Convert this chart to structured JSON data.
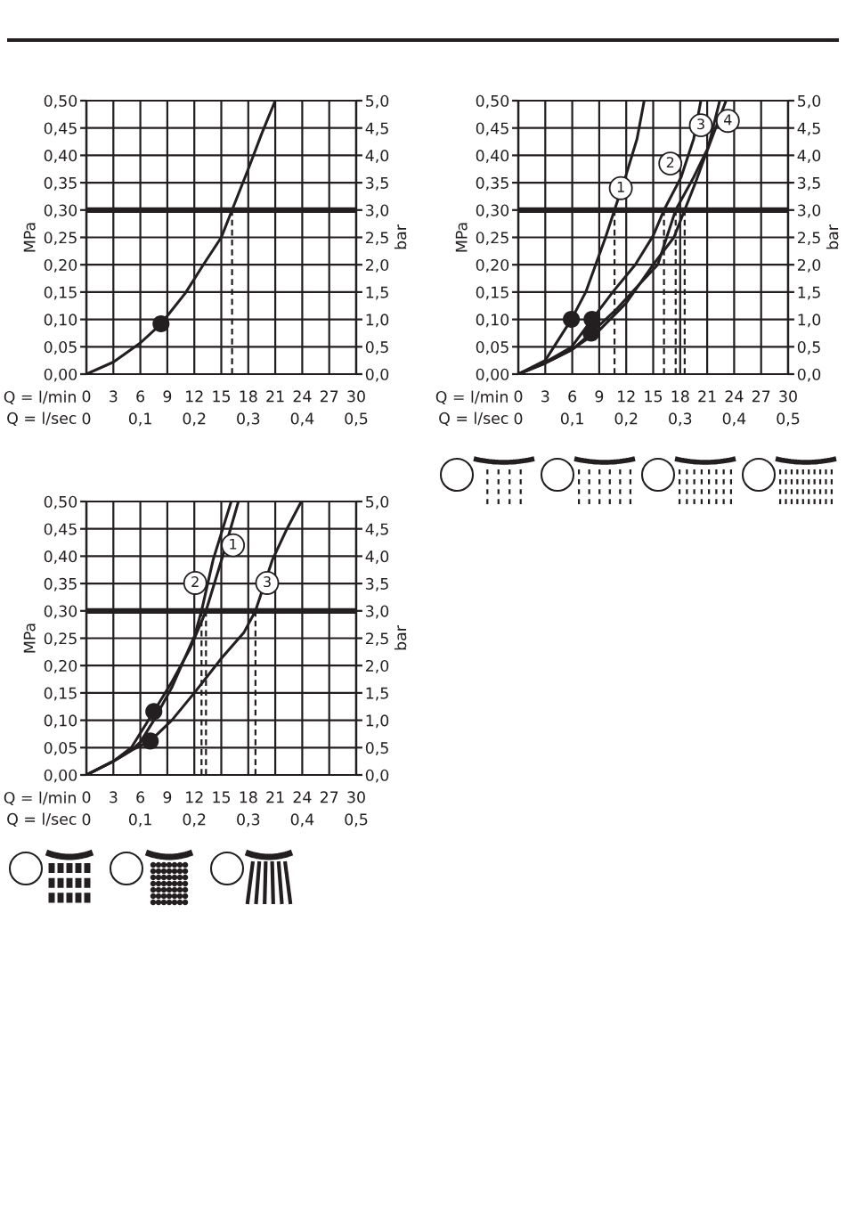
{
  "chart_data": [
    {
      "type": "line",
      "xlabel": "Q = l/min",
      "x2label": "Q = l/sec",
      "ylabel": "MPa",
      "y2label": "bar",
      "xlim": [
        0,
        30
      ],
      "xticks": [
        0,
        3,
        6,
        9,
        12,
        15,
        18,
        21,
        24,
        27,
        30
      ],
      "x2lim": [
        0,
        0.5
      ],
      "x2ticks": [
        0,
        {
          "value": 0.1,
          "label": "0,1"
        },
        {
          "value": 0.2,
          "label": "0,2"
        },
        {
          "value": 0.3,
          "label": "0,3"
        },
        {
          "value": 0.4,
          "label": "0,4"
        },
        {
          "value": 0.5,
          "label": "0,5"
        }
      ],
      "ylim": [
        0,
        0.5
      ],
      "yticks": [
        {
          "value": 0,
          "label": "0,00"
        },
        {
          "value": 0.05,
          "label": "0,05"
        },
        {
          "value": 0.1,
          "label": "0,10"
        },
        {
          "value": 0.15,
          "label": "0,15"
        },
        {
          "value": 0.2,
          "label": "0,20"
        },
        {
          "value": 0.25,
          "label": "0,25"
        },
        {
          "value": 0.3,
          "label": "0,30"
        },
        {
          "value": 0.35,
          "label": "0,35"
        },
        {
          "value": 0.4,
          "label": "0,40"
        },
        {
          "value": 0.45,
          "label": "0,45"
        },
        {
          "value": 0.5,
          "label": "0,50"
        }
      ],
      "y2lim": [
        0,
        5
      ],
      "y2ticks": [
        {
          "value": 0,
          "label": "0,0"
        },
        {
          "value": 0.5,
          "label": "0,5"
        },
        {
          "value": 1,
          "label": "1,0"
        },
        {
          "value": 1.5,
          "label": "1,5"
        },
        {
          "value": 2,
          "label": "2,0"
        },
        {
          "value": 2.5,
          "label": "2,5"
        },
        {
          "value": 3,
          "label": "3,0"
        },
        {
          "value": 3.5,
          "label": "3,5"
        },
        {
          "value": 4,
          "label": "4,0"
        },
        {
          "value": 4.5,
          "label": "4,5"
        },
        {
          "value": 5,
          "label": "5,0"
        }
      ],
      "grid": true,
      "ref_lines": [
        {
          "axis": "y",
          "value": 0.3,
          "color": "#231f20",
          "line_style": "solid"
        },
        {
          "axis": "x",
          "value": 16.2,
          "color": "#231f20",
          "line_style": "dashed"
        }
      ],
      "series": [
        {
          "color": "#231f20",
          "x": [
            0,
            3,
            6,
            8.3,
            11,
            13,
            15,
            16.2,
            18,
            19.5,
            21
          ],
          "values": [
            0,
            0.022,
            0.057,
            0.092,
            0.148,
            0.2,
            0.25,
            0.3,
            0.375,
            0.44,
            0.5
          ]
        },
        {
          "type": "scatter",
          "color": "#231f20",
          "marker": "circle",
          "x": [
            8.3
          ],
          "values": [
            0.092
          ]
        }
      ]
    },
    {
      "type": "line",
      "xlabel": "Q = l/min",
      "x2label": "Q = l/sec",
      "ylabel": "MPa",
      "y2label": "bar",
      "xlim": [
        0,
        30
      ],
      "xticks": [
        0,
        3,
        6,
        9,
        12,
        15,
        18,
        21,
        24,
        27,
        30
      ],
      "x2lim": [
        0,
        0.5
      ],
      "x2ticks": [
        0,
        {
          "value": 0.1,
          "label": "0,1"
        },
        {
          "value": 0.2,
          "label": "0,2"
        },
        {
          "value": 0.3,
          "label": "0,3"
        },
        {
          "value": 0.4,
          "label": "0,4"
        },
        {
          "value": 0.5,
          "label": "0,5"
        }
      ],
      "ylim": [
        0,
        0.5
      ],
      "yticks": [
        {
          "value": 0,
          "label": "0,00"
        },
        {
          "value": 0.05,
          "label": "0,05"
        },
        {
          "value": 0.1,
          "label": "0,10"
        },
        {
          "value": 0.15,
          "label": "0,15"
        },
        {
          "value": 0.2,
          "label": "0,20"
        },
        {
          "value": 0.25,
          "label": "0,25"
        },
        {
          "value": 0.3,
          "label": "0,30"
        },
        {
          "value": 0.35,
          "label": "0,35"
        },
        {
          "value": 0.4,
          "label": "0,40"
        },
        {
          "value": 0.45,
          "label": "0,45"
        },
        {
          "value": 0.5,
          "label": "0,50"
        }
      ],
      "y2lim": [
        0,
        5
      ],
      "y2ticks": [
        {
          "value": 0,
          "label": "0,0"
        },
        {
          "value": 0.5,
          "label": "0,5"
        },
        {
          "value": 1,
          "label": "1,0"
        },
        {
          "value": 1.5,
          "label": "1,5"
        },
        {
          "value": 2,
          "label": "2,0"
        },
        {
          "value": 2.5,
          "label": "2,5"
        },
        {
          "value": 3,
          "label": "3,0"
        },
        {
          "value": 3.5,
          "label": "3,5"
        },
        {
          "value": 4,
          "label": "4,0"
        },
        {
          "value": 4.5,
          "label": "4,5"
        },
        {
          "value": 5,
          "label": "5,0"
        }
      ],
      "grid": true,
      "ref_lines": [
        {
          "axis": "y",
          "value": 0.3,
          "color": "#231f20",
          "line_style": "solid"
        },
        {
          "axis": "x",
          "value": 10.7,
          "color": "#231f20",
          "line_style": "dashed"
        },
        {
          "axis": "x",
          "value": 16.2,
          "color": "#231f20",
          "line_style": "dashed"
        },
        {
          "axis": "x",
          "value": 17.5,
          "color": "#231f20",
          "line_style": "dashed"
        },
        {
          "axis": "x",
          "value": 18.5,
          "color": "#231f20",
          "line_style": "dashed"
        }
      ],
      "annotations": [
        {
          "text": "1",
          "x": 11.4,
          "y": 0.34
        },
        {
          "text": "2",
          "x": 16.9,
          "y": 0.385
        },
        {
          "text": "3",
          "x": 20.3,
          "y": 0.455
        },
        {
          "text": "4",
          "x": 23.3,
          "y": 0.463
        }
      ],
      "series": [
        {
          "color": "#231f20",
          "x": [
            0,
            3,
            5.9,
            7.5,
            8.6,
            9.7,
            10.7,
            12.0,
            13.2,
            14.0
          ],
          "values": [
            0,
            0.025,
            0.1,
            0.15,
            0.2,
            0.25,
            0.3,
            0.365,
            0.43,
            0.5
          ]
        },
        {
          "color": "#231f20",
          "x": [
            0,
            3,
            5.9,
            8.2,
            10.5,
            13,
            15,
            16.2,
            18.1,
            19.5,
            20.3
          ],
          "values": [
            0,
            0.022,
            0.049,
            0.1,
            0.15,
            0.2,
            0.253,
            0.3,
            0.36,
            0.43,
            0.5
          ]
        },
        {
          "color": "#231f20",
          "x": [
            0,
            3,
            6,
            8.1,
            11,
            13.5,
            15.5,
            16.5,
            17.5,
            19.5,
            21.1,
            22.4
          ],
          "values": [
            0,
            0.02,
            0.045,
            0.075,
            0.12,
            0.165,
            0.2,
            0.25,
            0.3,
            0.36,
            0.414,
            0.5
          ]
        },
        {
          "color": "#231f20",
          "x": [
            0,
            3,
            6,
            9,
            12,
            15,
            17.3,
            18.5,
            19.7,
            20.8,
            23.1
          ],
          "values": [
            0,
            0.02,
            0.045,
            0.08,
            0.13,
            0.2,
            0.25,
            0.3,
            0.35,
            0.4,
            0.5
          ]
        },
        {
          "type": "scatter",
          "color": "#231f20",
          "marker": "circle",
          "x": [
            5.9,
            8.2,
            8.1
          ],
          "values": [
            0.1,
            0.1,
            0.075
          ]
        }
      ]
    },
    {
      "type": "line",
      "xlabel": "Q = l/min",
      "x2label": "Q = l/sec",
      "ylabel": "MPa",
      "y2label": "bar",
      "xlim": [
        0,
        30
      ],
      "xticks": [
        0,
        3,
        6,
        9,
        12,
        15,
        18,
        21,
        24,
        27,
        30
      ],
      "x2lim": [
        0,
        0.5
      ],
      "x2ticks": [
        0,
        {
          "value": 0.1,
          "label": "0,1"
        },
        {
          "value": 0.2,
          "label": "0,2"
        },
        {
          "value": 0.3,
          "label": "0,3"
        },
        {
          "value": 0.4,
          "label": "0,4"
        },
        {
          "value": 0.5,
          "label": "0,5"
        }
      ],
      "ylim": [
        0,
        0.5
      ],
      "yticks": [
        {
          "value": 0,
          "label": "0,00"
        },
        {
          "value": 0.05,
          "label": "0,05"
        },
        {
          "value": 0.1,
          "label": "0,10"
        },
        {
          "value": 0.15,
          "label": "0,15"
        },
        {
          "value": 0.2,
          "label": "0,20"
        },
        {
          "value": 0.25,
          "label": "0,25"
        },
        {
          "value": 0.3,
          "label": "0,30"
        },
        {
          "value": 0.35,
          "label": "0,35"
        },
        {
          "value": 0.4,
          "label": "0,40"
        },
        {
          "value": 0.45,
          "label": "0,45"
        },
        {
          "value": 0.5,
          "label": "0,50"
        }
      ],
      "y2lim": [
        0,
        5
      ],
      "y2ticks": [
        {
          "value": 0,
          "label": "0,0"
        },
        {
          "value": 0.5,
          "label": "0,5"
        },
        {
          "value": 1,
          "label": "1,0"
        },
        {
          "value": 1.5,
          "label": "1,5"
        },
        {
          "value": 2,
          "label": "2,0"
        },
        {
          "value": 2.5,
          "label": "2,5"
        },
        {
          "value": 3,
          "label": "3,0"
        },
        {
          "value": 3.5,
          "label": "3,5"
        },
        {
          "value": 4,
          "label": "4,0"
        },
        {
          "value": 4.5,
          "label": "4,5"
        },
        {
          "value": 5,
          "label": "5,0"
        }
      ],
      "grid": true,
      "ref_lines": [
        {
          "axis": "y",
          "value": 0.3,
          "color": "#231f20",
          "line_style": "solid"
        },
        {
          "axis": "x",
          "value": 12.8,
          "color": "#231f20",
          "line_style": "dashed"
        },
        {
          "axis": "x",
          "value": 13.3,
          "color": "#231f20",
          "line_style": "dashed"
        },
        {
          "axis": "x",
          "value": 18.8,
          "color": "#231f20",
          "line_style": "dashed"
        }
      ],
      "annotations": [
        {
          "text": "1",
          "x": 16.3,
          "y": 0.42
        },
        {
          "text": "2",
          "x": 12.1,
          "y": 0.351
        },
        {
          "text": "3",
          "x": 20.1,
          "y": 0.351
        }
      ],
      "series": [
        {
          "color": "#231f20",
          "x": [
            0,
            3,
            5,
            7.5,
            9.5,
            11.5,
            13.3,
            15.1,
            16.9
          ],
          "values": [
            0,
            0.025,
            0.05,
            0.116,
            0.17,
            0.23,
            0.3,
            0.397,
            0.5
          ]
        },
        {
          "color": "#231f20",
          "x": [
            0,
            3,
            5,
            6,
            7.5,
            9.5,
            12.0,
            12.8,
            14.1,
            16.1
          ],
          "values": [
            0,
            0.025,
            0.045,
            0.06,
            0.1,
            0.16,
            0.253,
            0.3,
            0.394,
            0.5
          ]
        },
        {
          "color": "#231f20",
          "x": [
            0,
            3,
            5,
            7.1,
            9.5,
            12.0,
            15.1,
            17.5,
            18.8,
            20.7,
            22.3,
            23.9
          ],
          "values": [
            0,
            0.025,
            0.045,
            0.062,
            0.1,
            0.15,
            0.215,
            0.26,
            0.3,
            0.394,
            0.45,
            0.5
          ]
        },
        {
          "type": "scatter",
          "color": "#231f20",
          "marker": "circle",
          "x": [
            7.5,
            7.1
          ],
          "values": [
            0.116,
            0.062
          ]
        }
      ]
    }
  ]
}
